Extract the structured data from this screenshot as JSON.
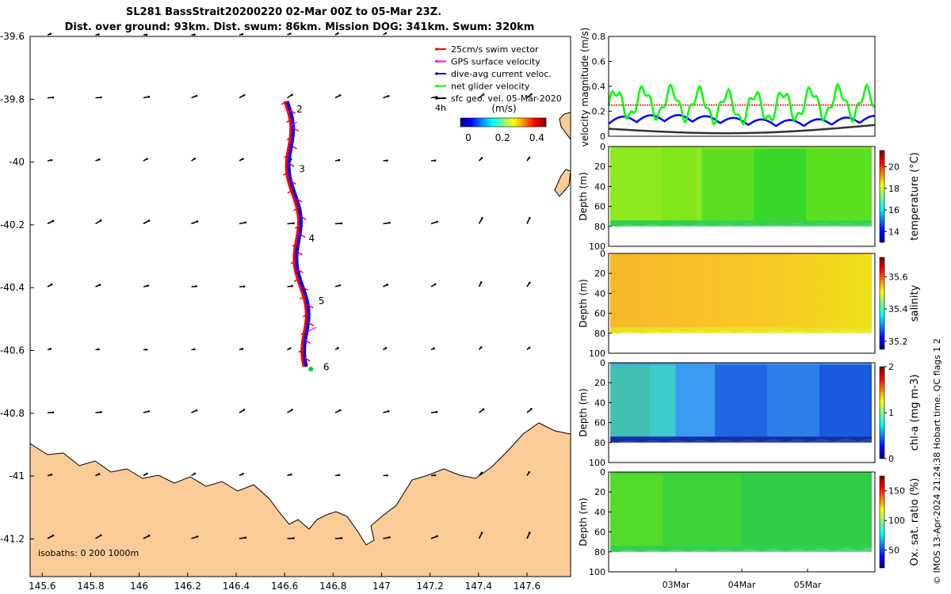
{
  "header": {
    "title_line1": "SL281 BassStrait20200220 02-Mar 00Z to 05-Mar 23Z.",
    "title_line2": "Dist. over ground: 93km. Dist. swum: 86km. Mission DOG: 341km. Swum: 320km"
  },
  "side_meta": {
    "text": "© IMOS 13-Apr-2024 21:24:38 Hobart time. QC flags 1  2"
  },
  "colors": {
    "land": "#fbcb98",
    "swim": "#ff0000",
    "gps": "#ff00ff",
    "dive": "#0000ff",
    "net": "#00ff00",
    "geo": "#000000",
    "speed_trace": "#333333"
  },
  "chart_data": [
    {
      "type": "map",
      "x_ticks": [
        "145.6",
        "145.8",
        "146",
        "146.2",
        "146.4",
        "146.6",
        "146.8",
        "147",
        "147.2",
        "147.4",
        "147.6"
      ],
      "y_ticks": [
        "-39.6",
        "-39.8",
        "-40",
        "-40.2",
        "-40.4",
        "-40.6",
        "-40.8",
        "-41",
        "-41.2"
      ],
      "xlim": [
        145.55,
        147.78
      ],
      "ylim": [
        -41.32,
        -39.6
      ],
      "legend": {
        "items": [
          {
            "label": "25cm/s swim vector",
            "color": "#ff0000"
          },
          {
            "label": "GPS surface velocity",
            "color": "#ff00ff"
          },
          {
            "label": "dive-avg current veloc.",
            "color": "#0000ff"
          },
          {
            "label": "net glider velocity",
            "color": "#00ff00"
          },
          {
            "label": "sfc geo. vel. 05-Mar-2020",
            "color": "#000000"
          }
        ],
        "placement": "top-right"
      },
      "colorbar": {
        "title": "(m/s)",
        "ticks": [
          "0",
          "0.2",
          "0.4"
        ],
        "range": [
          0,
          0.5
        ]
      },
      "time_step_label": "4h",
      "track_labels": [
        {
          "text": "2",
          "lon": 146.61,
          "lat": -39.83
        },
        {
          "text": "3",
          "lon": 146.62,
          "lat": -40.02
        },
        {
          "text": "4",
          "lon": 146.66,
          "lat": -40.24
        },
        {
          "text": "5",
          "lon": 146.7,
          "lat": -40.44
        },
        {
          "text": "6",
          "lon": 146.72,
          "lat": -40.65
        }
      ],
      "isobaths_label": "isobaths: 0   200  1000m"
    },
    {
      "type": "line",
      "ylabel": "velocity magnitude (m/s)",
      "ylim": [
        0,
        0.8
      ],
      "y_ticks": [
        "0",
        "0.2",
        "0.4",
        "0.6",
        "0.8"
      ],
      "series": [
        {
          "name": "net glider velocity",
          "color": "#00ff00"
        },
        {
          "name": "dive-avg current veloc.",
          "color": "#0000ff"
        },
        {
          "name": "25cm/s swim vector",
          "color": "#ff0000",
          "constant": 0.25
        }
      ]
    },
    {
      "type": "heatmap",
      "ylabel": "Depth (m)",
      "ylim": [
        100,
        0
      ],
      "y_ticks": [
        "0",
        "20",
        "40",
        "60",
        "80",
        "100"
      ],
      "colorbar_label": "temperature (°C)",
      "colorbar_ticks": [
        "14",
        "16",
        "18",
        "20"
      ],
      "range": [
        13,
        21.5
      ]
    },
    {
      "type": "heatmap",
      "ylabel": "Depth (m)",
      "ylim": [
        100,
        0
      ],
      "y_ticks": [
        "0",
        "20",
        "40",
        "60",
        "80",
        "100"
      ],
      "colorbar_label": "salinity",
      "colorbar_ticks": [
        "35.2",
        "35.4",
        "35.6"
      ],
      "range": [
        35.15,
        35.72
      ]
    },
    {
      "type": "heatmap",
      "ylabel": "Depth (m)",
      "ylim": [
        100,
        0
      ],
      "y_ticks": [
        "0",
        "20",
        "40",
        "60",
        "80",
        "100"
      ],
      "colorbar_label": "chl-a (mg m-3)",
      "colorbar_ticks": [
        "0",
        "1",
        "2"
      ],
      "range": [
        0,
        2
      ]
    },
    {
      "type": "heatmap",
      "ylabel": "Depth (m)",
      "ylim": [
        100,
        0
      ],
      "y_ticks": [
        "0",
        "20",
        "40",
        "60",
        "80",
        "100"
      ],
      "colorbar_label": "Ox. sat. ratio (%)",
      "colorbar_ticks": [
        "50",
        "100",
        "150"
      ],
      "range": [
        20,
        175
      ],
      "x_ticks": [
        "03Mar",
        "04Mar",
        "05Mar"
      ]
    }
  ]
}
